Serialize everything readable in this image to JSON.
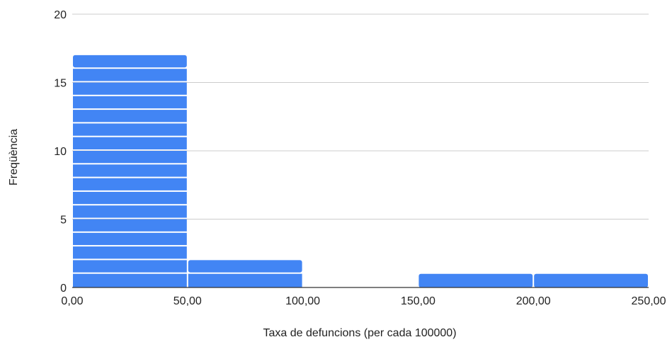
{
  "chart_data": {
    "type": "bar",
    "subtype": "histogram",
    "title": "",
    "xlabel": "Taxa de defuncions (per cada 100000)",
    "ylabel": "Freqüència",
    "bins": [
      {
        "from": 0,
        "to": 50,
        "count": 17
      },
      {
        "from": 50,
        "to": 100,
        "count": 2
      },
      {
        "from": 100,
        "to": 150,
        "count": 0
      },
      {
        "from": 150,
        "to": 200,
        "count": 1
      },
      {
        "from": 200,
        "to": 250,
        "count": 1
      }
    ],
    "xlim": [
      0,
      250
    ],
    "ylim": [
      0,
      20
    ],
    "x_ticks": [
      "0,00",
      "50,00",
      "100,00",
      "150,00",
      "200,00",
      "250,00"
    ],
    "y_ticks": [
      "0",
      "5",
      "10",
      "15",
      "20"
    ],
    "y_tick_values": [
      0,
      5,
      10,
      15,
      20
    ],
    "x_tick_values": [
      0,
      50,
      100,
      150,
      200,
      250
    ],
    "grid": true,
    "legend": "none",
    "colors": {
      "bar": "#4285f4",
      "grid": "#cccccc",
      "axis": "#333333",
      "separator": "#ffffff"
    }
  }
}
